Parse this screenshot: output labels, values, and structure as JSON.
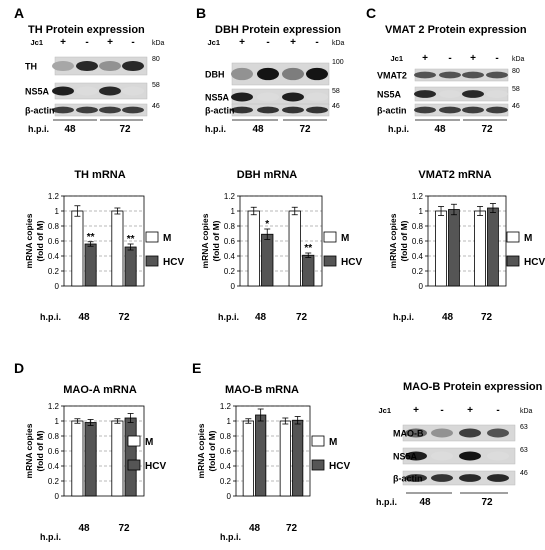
{
  "panels": {
    "A": {
      "letter": "A",
      "title": "TH Protein expression",
      "jc1_label": "Jc1",
      "lane_signs": [
        "+",
        "-",
        "+",
        "-"
      ],
      "kda_label": "kDa",
      "rows": [
        {
          "label": "TH",
          "marker": "80"
        },
        {
          "label": "NS5A",
          "marker": "58"
        },
        {
          "label": "β-actin",
          "marker": "46"
        }
      ],
      "hpi_label": "h.p.i.",
      "timepoints": [
        "48",
        "72"
      ]
    },
    "B": {
      "letter": "B",
      "title": "DBH Protein expression",
      "jc1_label": "Jc1",
      "lane_signs": [
        "+",
        "-",
        "+",
        "-"
      ],
      "kda_label": "kDa",
      "top_marker": "100",
      "rows": [
        {
          "label": "DBH",
          "marker": ""
        },
        {
          "label": "NS5A",
          "marker": "58"
        },
        {
          "label": "β-actin",
          "marker": "46"
        }
      ],
      "hpi_label": "h.p.i.",
      "timepoints": [
        "48",
        "72"
      ]
    },
    "C": {
      "letter": "C",
      "title": "VMAT 2 Protein expression",
      "jc1_label": "Jc1",
      "lane_signs": [
        "+",
        "-",
        "+",
        "-"
      ],
      "kda_label": "kDa",
      "rows": [
        {
          "label": "VMAT2",
          "marker": "80"
        },
        {
          "label": "NS5A",
          "marker": "58"
        },
        {
          "label": "β-actin",
          "marker": "46"
        }
      ],
      "hpi_label": "h.p.i.",
      "timepoints": [
        "48",
        "72"
      ]
    },
    "D": {
      "letter": "D"
    },
    "E": {
      "letter": "E",
      "blot": {
        "title": "MAO-B Protein expression",
        "jc1_label": "Jc1",
        "lane_signs": [
          "+",
          "-",
          "+",
          "-"
        ],
        "kda_label": "kDa",
        "rows": [
          {
            "label": "MAO-B",
            "marker": "63"
          },
          {
            "label": "NS5A",
            "marker": "63"
          },
          {
            "label": "β-actin",
            "marker": "46"
          }
        ],
        "hpi_label": "h.p.i.",
        "timepoints": [
          "48",
          "72"
        ]
      }
    }
  },
  "legend": {
    "mock": "M",
    "hcv": "HCV"
  },
  "colors": {
    "mock_fill": "#ffffff",
    "hcv_fill": "#555555",
    "band": "#1a1a1a",
    "blot_bg": "#d8d8d8"
  },
  "chart_data": [
    {
      "panel": "A",
      "type": "bar",
      "title": "TH mRNA",
      "ylabel": "mRNA copies\n(fold of M)",
      "xlabel": "h.p.i.",
      "categories": [
        "48",
        "72"
      ],
      "ylim": [
        0,
        1.2
      ],
      "yticks": [
        "0",
        "0.2",
        "0.4",
        "0.6",
        "0.8",
        "1",
        "1.2"
      ],
      "series": [
        {
          "name": "M",
          "values": [
            1.0,
            1.0
          ],
          "errors": [
            0.07,
            0.04
          ]
        },
        {
          "name": "HCV",
          "values": [
            0.56,
            0.52
          ],
          "errors": [
            0.03,
            0.04
          ]
        }
      ],
      "significance": [
        "**",
        "**"
      ],
      "legend": "right",
      "grid": "dashed"
    },
    {
      "panel": "B",
      "type": "bar",
      "title": "DBH mRNA",
      "ylabel": "mRNA copies\n(fold of M)",
      "xlabel": "h.p.i.",
      "categories": [
        "48",
        "72"
      ],
      "ylim": [
        0,
        1.2
      ],
      "yticks": [
        "0",
        "0.2",
        "0.4",
        "0.6",
        "0.8",
        "1",
        "1.2"
      ],
      "series": [
        {
          "name": "M",
          "values": [
            1.0,
            1.0
          ],
          "errors": [
            0.05,
            0.05
          ]
        },
        {
          "name": "HCV",
          "values": [
            0.69,
            0.41
          ],
          "errors": [
            0.07,
            0.03
          ]
        }
      ],
      "significance": [
        "*",
        "**"
      ],
      "legend": "right",
      "grid": "dashed"
    },
    {
      "panel": "C",
      "type": "bar",
      "title": "VMAT2 mRNA",
      "ylabel": "mRNA copies\n(fold of M)",
      "xlabel": "h.p.i.",
      "categories": [
        "48",
        "72"
      ],
      "ylim": [
        0,
        1.2
      ],
      "yticks": [
        "0",
        "0.2",
        "0.4",
        "0.6",
        "0.8",
        "1",
        "1.2"
      ],
      "series": [
        {
          "name": "M",
          "values": [
            1.0,
            1.0
          ],
          "errors": [
            0.06,
            0.06
          ]
        },
        {
          "name": "HCV",
          "values": [
            1.02,
            1.04
          ],
          "errors": [
            0.07,
            0.06
          ]
        }
      ],
      "significance": [
        "",
        ""
      ],
      "legend": "right",
      "grid": "dashed"
    },
    {
      "panel": "D",
      "type": "bar",
      "title": "MAO-A mRNA",
      "ylabel": "mRNA copies\n(fold of M)",
      "xlabel": "h.p.i.",
      "categories": [
        "48",
        "72"
      ],
      "ylim": [
        0,
        1.2
      ],
      "yticks": [
        "0",
        "0.2",
        "0.4",
        "0.6",
        "0.8",
        "1",
        "1.2"
      ],
      "series": [
        {
          "name": "M",
          "values": [
            1.0,
            1.0
          ],
          "errors": [
            0.03,
            0.03
          ]
        },
        {
          "name": "HCV",
          "values": [
            0.98,
            1.04
          ],
          "errors": [
            0.04,
            0.06
          ]
        }
      ],
      "significance": [
        "",
        ""
      ],
      "legend": "right",
      "grid": "dashed"
    },
    {
      "panel": "E",
      "type": "bar",
      "title": "MAO-B mRNA",
      "ylabel": "mRNA copies\n(fold of M)",
      "xlabel": "h.p.i.",
      "categories": [
        "48",
        "72"
      ],
      "ylim": [
        0,
        1.2
      ],
      "yticks": [
        "0",
        "0.2",
        "0.4",
        "0.6",
        "0.8",
        "1",
        "1.2"
      ],
      "series": [
        {
          "name": "M",
          "values": [
            1.0,
            1.0
          ],
          "errors": [
            0.03,
            0.04
          ]
        },
        {
          "name": "HCV",
          "values": [
            1.08,
            1.01
          ],
          "errors": [
            0.08,
            0.05
          ]
        }
      ],
      "significance": [
        "",
        ""
      ],
      "legend": "right",
      "grid": "dashed"
    }
  ]
}
